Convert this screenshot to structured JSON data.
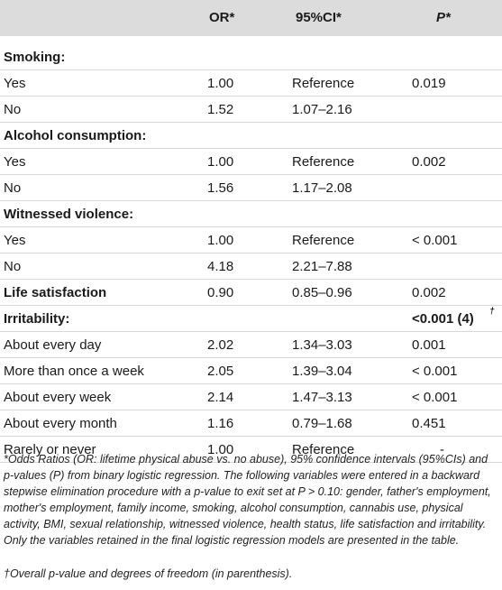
{
  "header": {
    "or": "OR*",
    "ci": "95%CI*",
    "p": "P*"
  },
  "rows": [
    {
      "label": "Smoking:",
      "bold": true,
      "or": "",
      "ci": "",
      "p": ""
    },
    {
      "label": "Yes",
      "or": "1.00",
      "ci": "Reference",
      "p": "0.019"
    },
    {
      "label": "No",
      "or": "1.52",
      "ci": "1.07–2.16",
      "p": ""
    },
    {
      "label": "Alcohol consumption:",
      "bold": true,
      "or": "",
      "ci": "",
      "p": ""
    },
    {
      "label": "Yes",
      "or": "1.00",
      "ci": "Reference",
      "p": "0.002"
    },
    {
      "label": "No",
      "or": "1.56",
      "ci": "1.17–2.08",
      "p": ""
    },
    {
      "label": "Witnessed violence:",
      "bold": true,
      "or": "",
      "ci": "",
      "p": ""
    },
    {
      "label": "Yes",
      "or": "1.00",
      "ci": "Reference",
      "p": "< 0.001"
    },
    {
      "label": "No",
      "or": "4.18",
      "ci": "2.21–7.88",
      "p": ""
    },
    {
      "label": "Life satisfaction",
      "bold": true,
      "or": "0.90",
      "ci": "0.85–0.96",
      "p": "0.002"
    },
    {
      "label": "Irritability:",
      "bold": true,
      "or": "",
      "ci": "",
      "p": "<0.001 (4)",
      "p_sup": "†",
      "p_bold": true
    },
    {
      "label": "About every day",
      "or": "2.02",
      "ci": "1.34–3.03",
      "p": "0.001"
    },
    {
      "label": "More than once a week",
      "or": "2.05",
      "ci": "1.39–3.04",
      "p": "< 0.001"
    },
    {
      "label": "About every week",
      "or": "2.14",
      "ci": "1.47–3.13",
      "p": "< 0.001"
    },
    {
      "label": "About every month",
      "or": "1.16",
      "ci": "0.79–1.68",
      "p": "0.451"
    },
    {
      "label": "Rarely or never",
      "or": "1.00",
      "ci": "Reference",
      "p": "-"
    }
  ],
  "footnotes": {
    "note1": "*Odds Ratios (OR: lifetime physical abuse vs. no abuse), 95% confidence intervals (95%CIs) and p-values (P) from binary logistic regression. The following variables were entered in a backward stepwise elimination procedure with a p-value to exit set at P > 0.10: gender, father's employment, mother's employment, family income, smoking, alcohol consumption, cannabis use, physical activity, BMI, sexual relationship, witnessed violence, health status, life satisfaction and irritability. Only the variables retained in the final logistic regression models are presented in the table.",
    "note2": "†Overall p-value and degrees of freedom (in parenthesis)."
  }
}
